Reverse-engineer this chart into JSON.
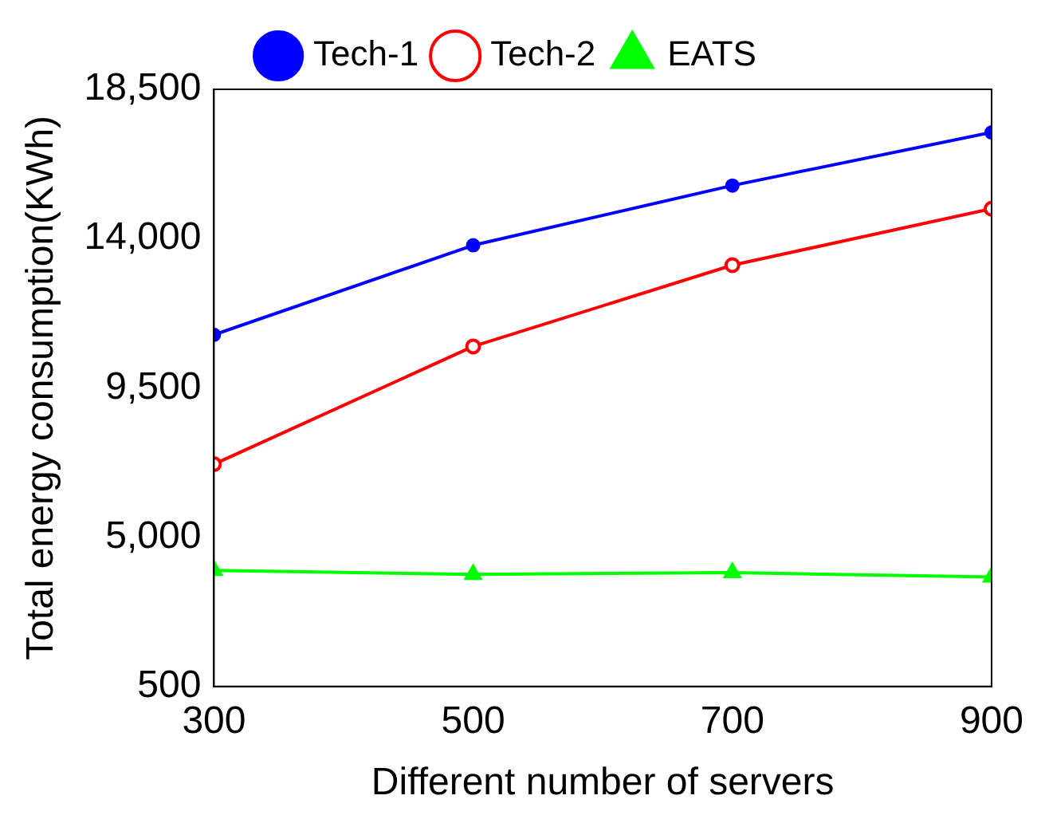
{
  "chart_data": {
    "type": "line",
    "xlabel": "Different number of servers",
    "ylabel": "Total energy consumption(KWh)",
    "x": [
      300,
      500,
      700,
      900
    ],
    "series": [
      {
        "name": "Tech-1",
        "color": "#0000ff",
        "marker": "circle",
        "values": [
          11100,
          13800,
          15600,
          17200
        ]
      },
      {
        "name": "Tech-2",
        "color": "#ff0000",
        "marker": "circle-open",
        "values": [
          7200,
          10750,
          13200,
          14900
        ]
      },
      {
        "name": "EATS",
        "color": "#00ff00",
        "marker": "triangle",
        "values": [
          4000,
          3880,
          3930,
          3800
        ]
      }
    ],
    "xlim": [
      300,
      900
    ],
    "xticks": [
      300,
      500,
      700,
      900
    ],
    "ylim": [
      500,
      18500
    ],
    "yticks": [
      {
        "value": 500,
        "label": "500"
      },
      {
        "value": 5000,
        "label": "5,000"
      },
      {
        "value": 9500,
        "label": "9,500"
      },
      {
        "value": 14000,
        "label": "14,000"
      },
      {
        "value": 18500,
        "label": "18,500"
      }
    ],
    "grid": false,
    "legend": "top",
    "line_style": "solid"
  }
}
